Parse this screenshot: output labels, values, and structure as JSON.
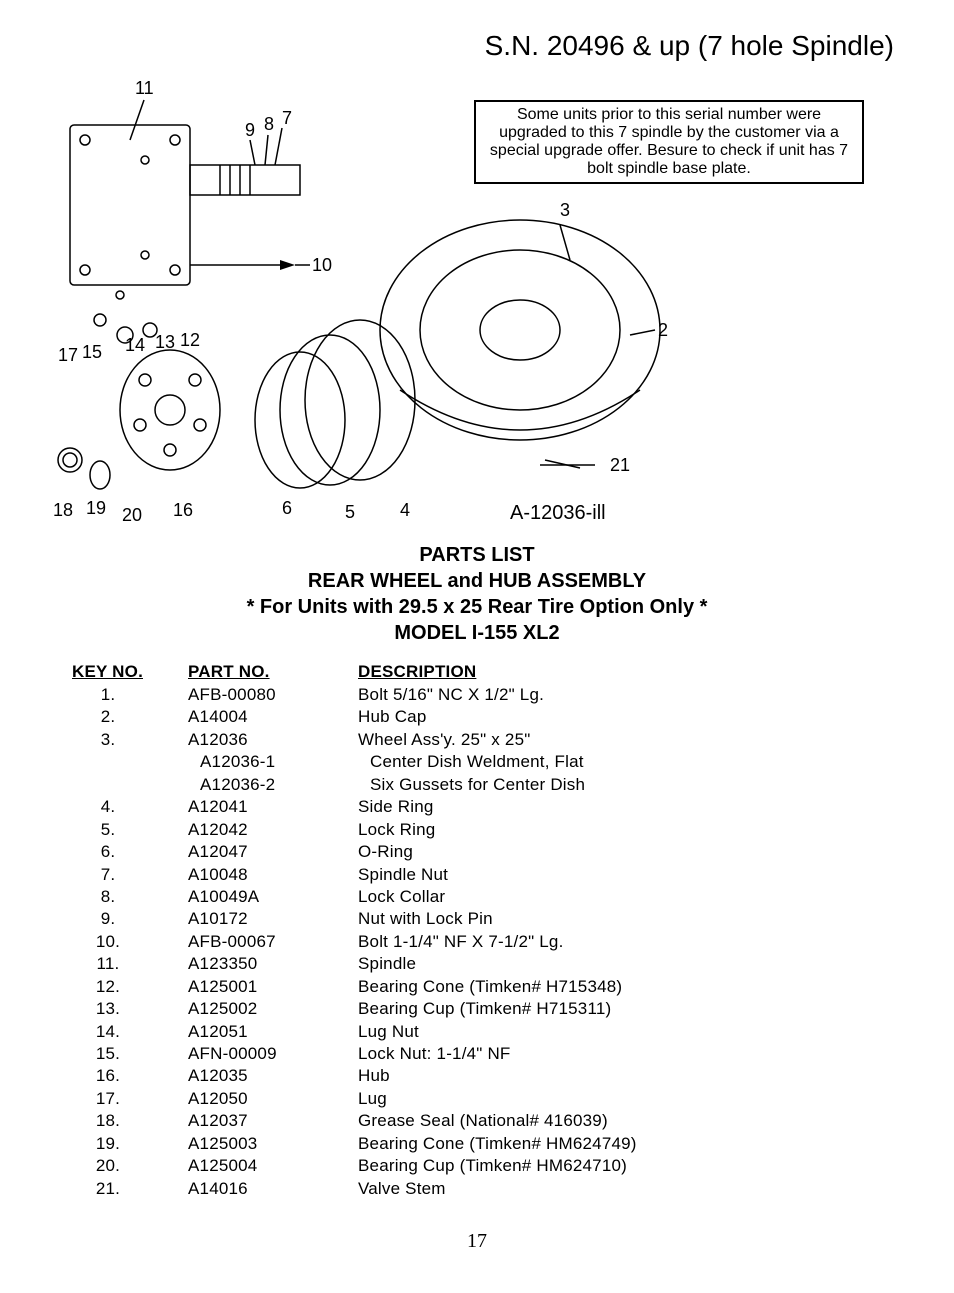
{
  "header": {
    "title": "S.N. 20496 & up (7 hole Spindle)"
  },
  "diagram": {
    "note": "Some units prior to this serial number were upgraded to this 7 spindle by the customer via a special upgrade offer. Besure to check if unit has 7 bolt spindle base plate.",
    "label": "A-12036-ill",
    "callouts": {
      "c11": "11",
      "c9": "9",
      "c8": "8",
      "c7": "7",
      "c3": "3",
      "c10": "10",
      "c12": "12",
      "c13": "13",
      "c14": "14",
      "c15": "15",
      "c17": "17",
      "c2": "2",
      "c21": "21",
      "c18": "18",
      "c19": "19",
      "c20": "20",
      "c16": "16",
      "c6": "6",
      "c5": "5",
      "c4": "4"
    }
  },
  "listHeading": {
    "line1": "PARTS LIST",
    "line2": "REAR  WHEEL and HUB ASSEMBLY",
    "line3": "* For Units with 29.5 x 25 Rear Tire Option Only *",
    "line4": "MODEL I-155 XL2"
  },
  "tableHeaders": {
    "key": "KEY NO.",
    "part": "PART NO.",
    "desc": "DESCRIPTION"
  },
  "parts": [
    {
      "key": "1.",
      "part": "AFB-00080",
      "desc": "Bolt 5/16\" NC X 1/2\" Lg."
    },
    {
      "key": "2.",
      "part": "A14004",
      "desc": "Hub Cap"
    },
    {
      "key": "3.",
      "part": "A12036",
      "desc": "Wheel Ass'y. 25\" x 25\""
    },
    {
      "key": "",
      "part": "A12036-1",
      "desc": "Center Dish Weldment, Flat",
      "sub": true
    },
    {
      "key": "",
      "part": "A12036-2",
      "desc": "Six Gussets for Center Dish",
      "sub": true
    },
    {
      "key": "4.",
      "part": "A12041",
      "desc": "Side Ring"
    },
    {
      "key": "5.",
      "part": "A12042",
      "desc": "Lock Ring"
    },
    {
      "key": "6.",
      "part": "A12047",
      "desc": "O-Ring"
    },
    {
      "key": "7.",
      "part": "A10048",
      "desc": "Spindle Nut"
    },
    {
      "key": "8.",
      "part": "A10049A",
      "desc": "Lock Collar"
    },
    {
      "key": "9.",
      "part": "A10172",
      "desc": "Nut with Lock Pin"
    },
    {
      "key": "10.",
      "part": "AFB-00067",
      "desc": "Bolt 1-1/4\" NF X 7-1/2\" Lg."
    },
    {
      "key": "11.",
      "part": "A123350",
      "desc": "Spindle"
    },
    {
      "key": "12.",
      "part": "A125001",
      "desc": "Bearing Cone (Timken# H715348)"
    },
    {
      "key": "13.",
      "part": "A125002",
      "desc": "Bearing Cup (Timken# H715311)"
    },
    {
      "key": "14.",
      "part": "A12051",
      "desc": "Lug Nut"
    },
    {
      "key": "15.",
      "part": "AFN-00009",
      "desc": "Lock Nut: 1-1/4\" NF"
    },
    {
      "key": "16.",
      "part": "A12035",
      "desc": "Hub"
    },
    {
      "key": "17.",
      "part": "A12050",
      "desc": "Lug"
    },
    {
      "key": "18.",
      "part": "A12037",
      "desc": "Grease Seal (National# 416039)"
    },
    {
      "key": "19.",
      "part": "A125003",
      "desc": "Bearing Cone (Timken# HM624749)"
    },
    {
      "key": "20.",
      "part": "A125004",
      "desc": "Bearing Cup (Timken# HM624710)"
    },
    {
      "key": "21.",
      "part": "A14016",
      "desc": "Valve Stem"
    }
  ],
  "pageNumber": "17"
}
